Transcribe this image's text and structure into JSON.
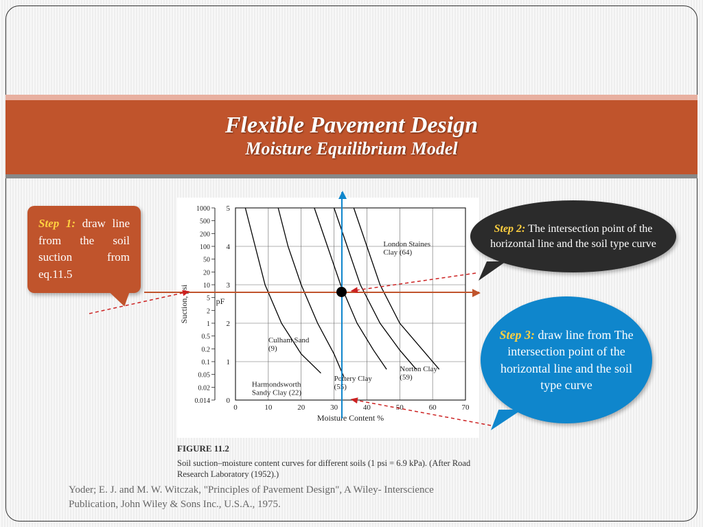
{
  "title": {
    "main": "Flexible Pavement Design",
    "sub": "Moisture Equilibrium Model"
  },
  "steps": {
    "s1": {
      "label": "Step 1:",
      "text": " draw line from the soil suction from eq.11.5"
    },
    "s2": {
      "label": "Step 2:",
      "text": " The intersection point of the horizontal line and the soil type curve"
    },
    "s3": {
      "label": "Step 3:",
      "text": " draw line from The intersection point of the horizontal line and the soil type curve"
    }
  },
  "chart": {
    "type": "line",
    "figure_label": "FIGURE 11.2",
    "caption": "Soil suction–moisture content curves for different soils (1 psi = 6.9 kPa). (After Road Research Laboratory (1952).)",
    "xlabel": "Moisture Content %",
    "ylabel_left": "Suction, psi",
    "ylabel_right": "pF",
    "xlim": [
      0,
      70
    ],
    "xtick_step": 10,
    "left_ticks": [
      1000,
      500,
      200,
      100,
      50,
      20,
      10,
      5,
      2,
      1,
      0.5,
      0.2,
      0.1,
      0.05,
      0.02,
      0.014
    ],
    "right_ticks": [
      5,
      4,
      3,
      2,
      1,
      0
    ],
    "grid_color": "#666",
    "curve_color": "#000",
    "line_width": 1.3,
    "curves": [
      {
        "name": "Culham Sand",
        "code": 9,
        "points": [
          [
            3,
            5
          ],
          [
            6,
            4
          ],
          [
            9,
            3
          ],
          [
            14,
            2
          ],
          [
            20,
            1.2
          ],
          [
            26,
            0.7
          ]
        ]
      },
      {
        "name": "Harmondsworth Sandy Clay",
        "code": 22,
        "points": [
          [
            13,
            5
          ],
          [
            16,
            4
          ],
          [
            20,
            3
          ],
          [
            25,
            2
          ],
          [
            30,
            1.2
          ],
          [
            33,
            0.6
          ]
        ]
      },
      {
        "name": "Pottery Clay",
        "code": 55,
        "points": [
          [
            24,
            5
          ],
          [
            28,
            4
          ],
          [
            32,
            3
          ],
          [
            37,
            2
          ],
          [
            42,
            1.3
          ],
          [
            46,
            0.8
          ]
        ]
      },
      {
        "name": "Norton Clay",
        "code": 59,
        "points": [
          [
            30,
            5
          ],
          [
            34,
            4
          ],
          [
            38,
            3
          ],
          [
            44,
            2
          ],
          [
            50,
            1.3
          ],
          [
            55,
            0.8
          ]
        ]
      },
      {
        "name": "London Staines Clay",
        "code": 64,
        "points": [
          [
            36,
            5
          ],
          [
            40,
            4
          ],
          [
            44,
            3
          ],
          [
            50,
            2
          ],
          [
            57,
            1.3
          ],
          [
            62,
            0.8
          ]
        ]
      }
    ],
    "curve_labels": [
      {
        "text": "Culham Sand",
        "sub": "(9)",
        "x": 10,
        "y": 1.5
      },
      {
        "text": "Harmondsworth",
        "sub": "Sandy Clay (22)",
        "x": 5,
        "y": 0.35
      },
      {
        "text": "Pottery Clay",
        "sub": "(55)",
        "x": 30,
        "y": 0.5
      },
      {
        "text": "Norton Clay",
        "sub": "(59)",
        "x": 50,
        "y": 0.75
      },
      {
        "text": "London Staines",
        "sub": "Clay (64)",
        "x": 45,
        "y": 4.0
      }
    ],
    "colors": {
      "horiz_line": "#c0542c",
      "vert_line": "#0f86cc",
      "dashed_arrow": "#c22",
      "dot": "#000"
    }
  },
  "citation": "Yoder; E. J. and M. W. Witczak, \"Principles of Pavement Design\", A Wiley- Interscience Publication, John Wiley & Sons Inc., U.S.A., 1975."
}
